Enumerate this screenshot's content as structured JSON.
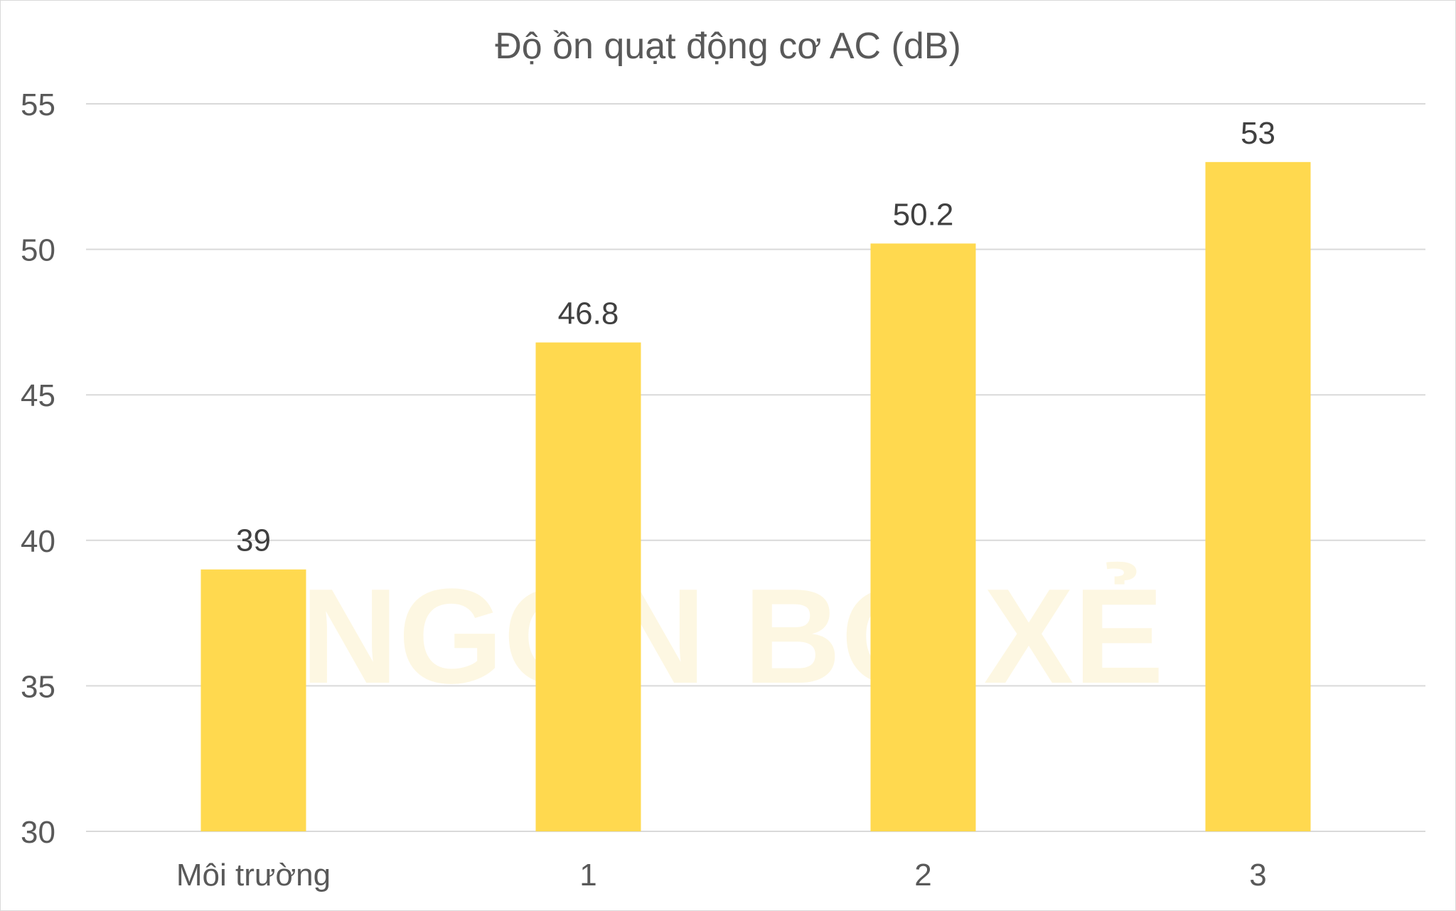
{
  "chart_data": {
    "type": "bar",
    "title": "Độ ồn quạt động cơ AC (dB)",
    "categories": [
      "Môi trường",
      "1",
      "2",
      "3"
    ],
    "values": [
      39,
      46.8,
      50.2,
      53
    ],
    "data_labels": [
      "39",
      "46.8",
      "50.2",
      "53"
    ],
    "xlabel": "",
    "ylabel": "",
    "ylim": [
      30,
      55
    ],
    "yticks": [
      "30",
      "35",
      "40",
      "45",
      "50",
      "55"
    ],
    "grid": true,
    "legend": "none",
    "bar_color": "#FFD94F",
    "watermark": "NGON BỔ XẺ"
  }
}
